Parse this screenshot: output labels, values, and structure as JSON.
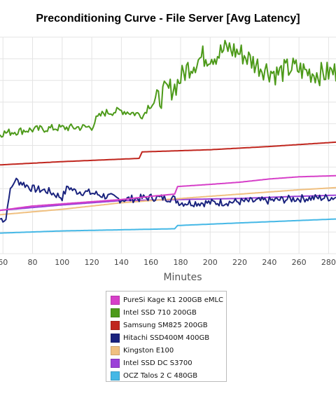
{
  "chart_data": {
    "type": "line",
    "title": "Preconditioning Curve - File Server [Avg Latency]",
    "xlabel": "Minutes",
    "ylabel": "",
    "x_ticks": [
      60,
      80,
      100,
      120,
      140,
      160,
      180,
      200,
      220,
      240,
      260,
      280
    ],
    "xlim": [
      58,
      285
    ],
    "ylim": [
      0,
      10
    ],
    "grid": true,
    "legend_position": "bottom",
    "series": [
      {
        "name": "PureSi Kage K1 200GB eMLC",
        "color": "#d63fc8",
        "x": [
          58,
          80,
          100,
          120,
          140,
          160,
          176,
          178,
          200,
          220,
          240,
          260,
          285
        ],
        "y": [
          2.0,
          2.2,
          2.3,
          2.4,
          2.5,
          2.65,
          2.75,
          3.1,
          3.2,
          3.3,
          3.45,
          3.55,
          3.6
        ]
      },
      {
        "name": "Intel SSD 710 200GB",
        "color": "#4d9a1a",
        "noisy": true,
        "x": [
          58,
          75,
          95,
          120,
          123,
          128,
          140,
          155,
          158,
          165,
          170,
          176,
          185,
          195,
          205,
          212,
          222,
          232,
          245,
          255,
          265,
          275,
          285
        ],
        "y": [
          5.55,
          5.7,
          5.8,
          5.85,
          6.2,
          6.5,
          6.6,
          6.4,
          6.8,
          7.1,
          7.5,
          7.7,
          8.6,
          9.1,
          9.2,
          9.5,
          9.2,
          8.7,
          8.3,
          8.6,
          8.4,
          8.3,
          8.4
        ]
      },
      {
        "name": "Samsung SM825 200GB",
        "color": "#c0261e",
        "x": [
          58,
          100,
          152,
          154,
          200,
          240,
          285
        ],
        "y": [
          4.1,
          4.25,
          4.4,
          4.7,
          4.8,
          4.95,
          5.15
        ]
      },
      {
        "name": "Hitachi SSD400M 400GB",
        "color": "#1a237e",
        "noisy": true,
        "x": [
          58,
          62,
          64,
          68,
          72,
          80,
          90,
          100,
          104,
          108,
          120,
          140,
          160,
          175,
          180,
          200,
          220,
          240,
          260,
          285
        ],
        "y": [
          1.6,
          1.6,
          2.7,
          3.4,
          3.3,
          3.0,
          2.9,
          2.6,
          3.1,
          2.9,
          2.8,
          2.5,
          2.6,
          2.55,
          2.35,
          2.35,
          2.4,
          2.45,
          2.55,
          2.6
        ]
      },
      {
        "name": "Kingston E100",
        "color": "#f0c080",
        "x": [
          58,
          100,
          140,
          180,
          220,
          260,
          285
        ],
        "y": [
          1.8,
          2.05,
          2.35,
          2.55,
          2.75,
          2.95,
          3.05
        ]
      },
      {
        "name": "Intel SSD DC S3700",
        "color": "#9b40d8",
        "x": [
          58,
          100,
          140,
          180,
          220,
          260,
          285
        ],
        "y": [
          2.0,
          2.25,
          2.45,
          2.5,
          2.55,
          2.65,
          2.7
        ]
      },
      {
        "name": "OCZ Talos 2 C 480GB",
        "color": "#45b8e6",
        "x": [
          58,
          100,
          176,
          178,
          220,
          285
        ],
        "y": [
          0.95,
          1.05,
          1.15,
          1.3,
          1.42,
          1.6
        ]
      }
    ]
  }
}
